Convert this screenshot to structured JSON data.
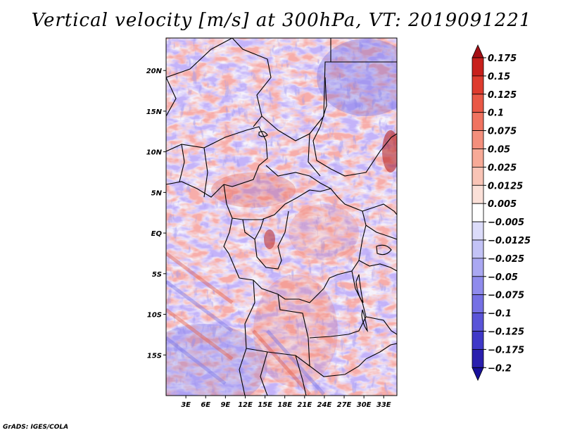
{
  "title": "Vertical velocity [m/s] at 300hPa, VT: 2019091221",
  "footer": "GrADS: IGES/COLA",
  "chart_data": {
    "type": "heatmap",
    "title": "Vertical velocity [m/s] at 300hPa, VT: 2019091221",
    "variable": "Vertical velocity",
    "units": "m/s",
    "level": "300hPa",
    "valid_time": "2019091221",
    "lon_range": [
      0,
      35
    ],
    "lat_range": [
      -20,
      24
    ],
    "x_ticks": [
      {
        "lon": 3,
        "label": "3E"
      },
      {
        "lon": 6,
        "label": "6E"
      },
      {
        "lon": 9,
        "label": "9E"
      },
      {
        "lon": 12,
        "label": "12E"
      },
      {
        "lon": 15,
        "label": "15E"
      },
      {
        "lon": 18,
        "label": "18E"
      },
      {
        "lon": 21,
        "label": "21E"
      },
      {
        "lon": 24,
        "label": "24E"
      },
      {
        "lon": 27,
        "label": "27E"
      },
      {
        "lon": 30,
        "label": "30E"
      },
      {
        "lon": 33,
        "label": "33E"
      }
    ],
    "y_ticks": [
      {
        "lat": 20,
        "label": "20N"
      },
      {
        "lat": 15,
        "label": "15N"
      },
      {
        "lat": 10,
        "label": "10N"
      },
      {
        "lat": 5,
        "label": "5N"
      },
      {
        "lat": 0,
        "label": "EQ"
      },
      {
        "lat": -5,
        "label": "5S"
      },
      {
        "lat": -10,
        "label": "10S"
      },
      {
        "lat": -15,
        "label": "15S"
      }
    ],
    "colorbar": {
      "levels": [
        {
          "label": "0.175",
          "value": 0.175
        },
        {
          "label": "0.15",
          "value": 0.15
        },
        {
          "label": "0.125",
          "value": 0.125
        },
        {
          "label": "0.1",
          "value": 0.1
        },
        {
          "label": "0.075",
          "value": 0.075
        },
        {
          "label": "0.05",
          "value": 0.05
        },
        {
          "label": "0.025",
          "value": 0.025
        },
        {
          "label": "0.0125",
          "value": 0.0125
        },
        {
          "label": "0.005",
          "value": 0.005
        },
        {
          "label": "−0.005",
          "value": -0.005
        },
        {
          "label": "−0.0125",
          "value": -0.0125
        },
        {
          "label": "−0.025",
          "value": -0.025
        },
        {
          "label": "−0.05",
          "value": -0.05
        },
        {
          "label": "−0.075",
          "value": -0.075
        },
        {
          "label": "−0.1",
          "value": -0.1
        },
        {
          "label": "−0.125",
          "value": -0.125
        },
        {
          "label": "−0.175",
          "value": -0.175
        },
        {
          "label": "−0.2",
          "value": -0.2
        }
      ],
      "colors": [
        "#a50f15",
        "#c8201c",
        "#de3b2e",
        "#e95846",
        "#f07360",
        "#f48f7c",
        "#f7aa97",
        "#f9c4b6",
        "#fbe0d8",
        "#ffffff",
        "#dcdcfa",
        "#c3c3f6",
        "#aaa8f2",
        "#8f8bec",
        "#7570e4",
        "#5a54d8",
        "#3f38c8",
        "#2a1fae",
        "#18109a"
      ]
    }
  }
}
